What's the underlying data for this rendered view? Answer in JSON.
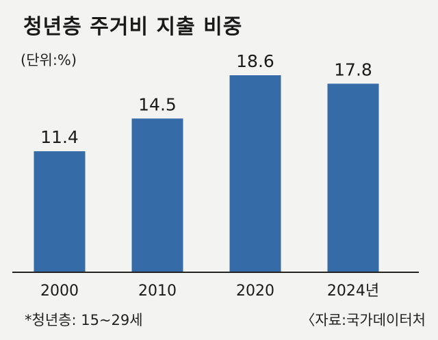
{
  "title": "청년층 주거비 지출 비중",
  "unit_label": "(단위:%)",
  "footnote": "*청년층: 15~29세",
  "source": "〈자료:국가데이터처",
  "colors": {
    "bar": "#356ba6",
    "axis": "#222222",
    "background": "#f3f3f1"
  },
  "chart_data": {
    "type": "bar",
    "categories": [
      "2000",
      "2010",
      "2020",
      "2024년"
    ],
    "values": [
      11.4,
      14.5,
      18.6,
      17.8
    ],
    "value_labels": [
      "11.4",
      "14.5",
      "18.6",
      "17.8"
    ],
    "title": "청년층 주거비 지출 비중",
    "xlabel": "",
    "ylabel": "",
    "unit": "(단위:%)",
    "ylim": [
      0,
      23
    ],
    "grid": false,
    "legend": "none"
  }
}
